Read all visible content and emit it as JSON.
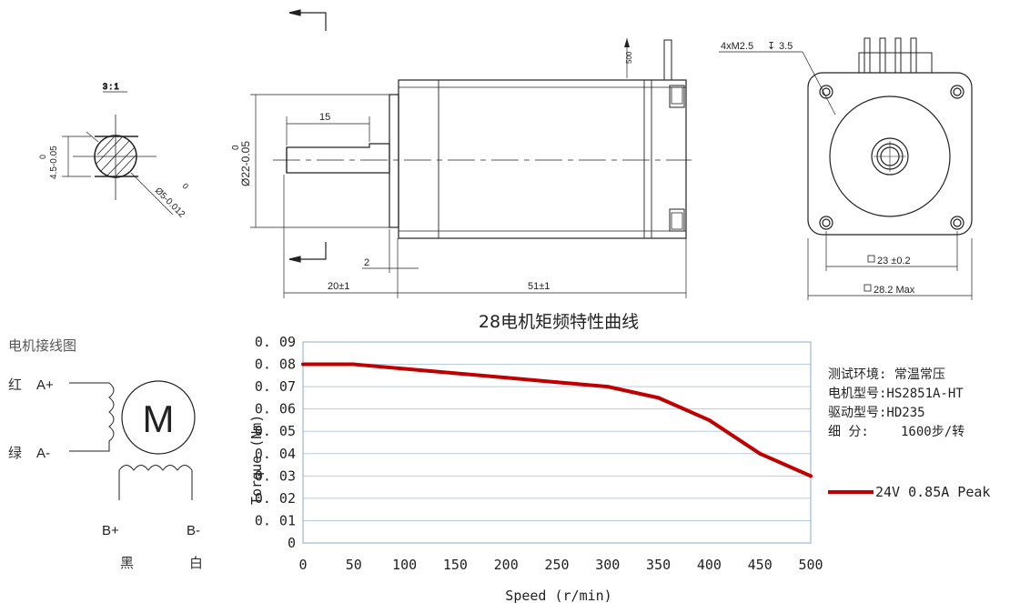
{
  "drawing": {
    "scale": "3 : 1",
    "flat_dim": "4.5-0.05",
    "flat_dim_upper": "0",
    "shaft_dia": "Ø5-0.012",
    "shaft_dia_upper": "0",
    "pilot_dia": "Ø22-0.05",
    "pilot_dia_upper": "0",
    "shaft_flat_len": "15",
    "pilot_depth": "2",
    "shaft_len": "20±1",
    "body_len": "51±1",
    "connector_dim": "500",
    "thread_note": "4xM2.5",
    "thread_depth": "3.5",
    "hole_spacing": "23 ±0.2",
    "body_size": "28.2 Max"
  },
  "wiring": {
    "title": "电机接线图",
    "motor_label": "M",
    "a_plus": "A+",
    "a_minus": "A-",
    "b_plus": "B+",
    "b_minus": "B-",
    "a_plus_color": "红",
    "a_minus_color": "绿",
    "b_plus_color": "黑",
    "b_minus_color": "白"
  },
  "info": {
    "line1": "测试环境: 常温常压",
    "line2": "电机型号:HS2851A-HT",
    "line3": "驱动型号:HD235",
    "line4_label": "细      分:",
    "line4_value": "1600步/转"
  },
  "chart_data": {
    "type": "line",
    "title": "28电机矩频特性曲线",
    "xlabel": "Speed (r/min)",
    "ylabel": "Torque (Nm)",
    "x": [
      0,
      50,
      100,
      150,
      200,
      250,
      300,
      350,
      400,
      450,
      500
    ],
    "xticks": [
      "0",
      "50",
      "100",
      "150",
      "200",
      "250",
      "300",
      "350",
      "400",
      "450",
      "500"
    ],
    "yticks": [
      "0",
      "0.01",
      "0.02",
      "0.03",
      "0.04",
      "0.05",
      "0.06",
      "0.07",
      "0.08",
      "0.09"
    ],
    "xlim": [
      0,
      500
    ],
    "ylim": [
      0,
      0.09
    ],
    "grid": true,
    "legend_position": "right",
    "series": [
      {
        "name": "24V 0.85A Peak",
        "color": "#c00000",
        "values": [
          0.08,
          0.08,
          0.078,
          0.076,
          0.074,
          0.072,
          0.07,
          0.065,
          0.055,
          0.04,
          0.03
        ]
      }
    ]
  }
}
